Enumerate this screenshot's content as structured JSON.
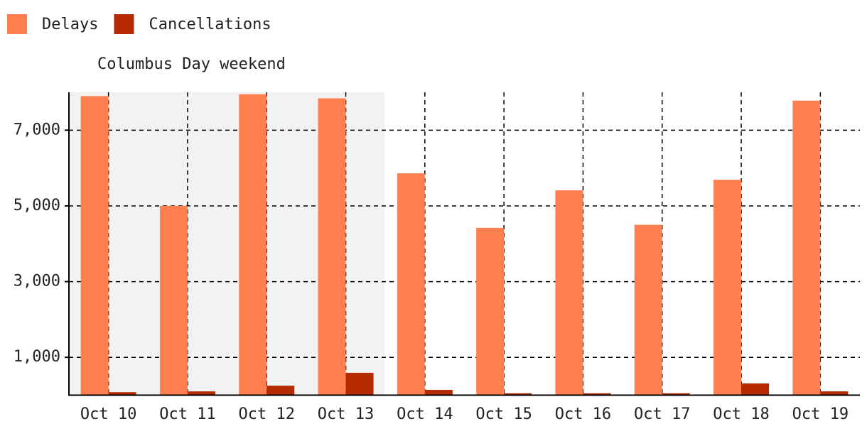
{
  "chart_data": {
    "type": "bar",
    "categories": [
      "Oct 10",
      "Oct 11",
      "Oct 12",
      "Oct 13",
      "Oct 14",
      "Oct 15",
      "Oct 16",
      "Oct 17",
      "Oct 18",
      "Oct 19"
    ],
    "series": [
      {
        "name": "Delays",
        "color": "#ff7f4f",
        "values": [
          7900,
          5000,
          7950,
          7840,
          5860,
          4420,
          5410,
          4500,
          5690,
          7780
        ]
      },
      {
        "name": "Cancellations",
        "color": "#b52a00",
        "values": [
          80,
          100,
          250,
          590,
          140,
          50,
          50,
          50,
          310,
          100
        ]
      }
    ],
    "ylim": [
      0,
      8000
    ],
    "yticks": [
      {
        "value": 1000,
        "label": "1,000"
      },
      {
        "value": 3000,
        "label": "3,000"
      },
      {
        "value": 5000,
        "label": "5,000"
      },
      {
        "value": 7000,
        "label": "7,000"
      }
    ],
    "grid": true,
    "legend": "top-left",
    "highlight": {
      "label": "Columbus Day weekend",
      "categories": [
        "Oct 10",
        "Oct 13"
      ],
      "color": "#f2f2f2"
    }
  }
}
